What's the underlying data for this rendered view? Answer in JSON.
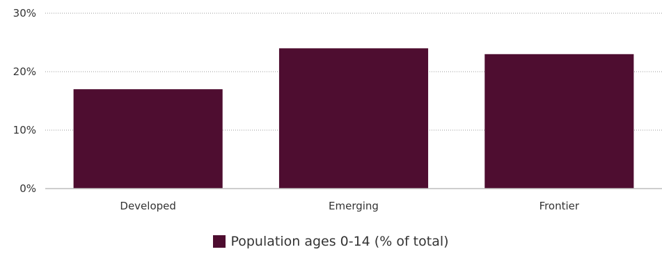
{
  "chart_data": {
    "type": "bar",
    "title": "",
    "xlabel": "",
    "ylabel": "",
    "categories": [
      "Developed",
      "Emerging",
      "Frontier"
    ],
    "series": [
      {
        "name": "Population ages 0-14 (% of total)",
        "values": [
          17,
          24,
          23
        ],
        "color": "#4e0d30"
      }
    ],
    "ylim": [
      0,
      30
    ],
    "yticks": [
      {
        "value": 0,
        "label": "0%"
      },
      {
        "value": 10,
        "label": "10%"
      },
      {
        "value": 20,
        "label": "20%"
      },
      {
        "value": 30,
        "label": "30%"
      }
    ],
    "grid": true,
    "legend_position": "bottom-center"
  }
}
